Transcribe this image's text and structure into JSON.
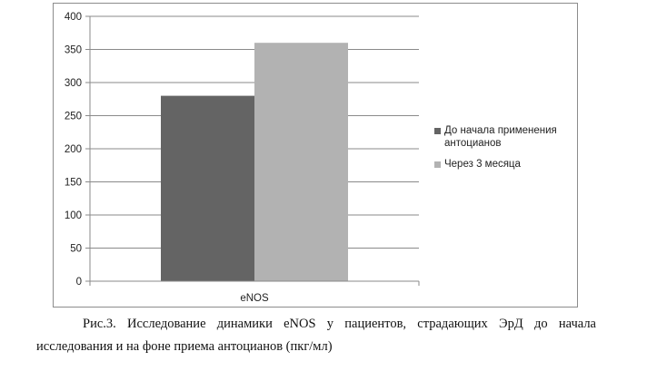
{
  "chart_data": {
    "type": "bar",
    "categories": [
      "eNOS"
    ],
    "series": [
      {
        "name": "До начала применения антоцианов",
        "values": [
          280
        ],
        "color": "#646464"
      },
      {
        "name": "Через 3 месяца",
        "values": [
          360
        ],
        "color": "#b2b2b2"
      }
    ],
    "ylim": [
      0,
      400
    ],
    "yticks": [
      0,
      50,
      100,
      150,
      200,
      250,
      300,
      350,
      400
    ],
    "grid": true,
    "legend_position": "right"
  },
  "legend": {
    "items": [
      {
        "label": "До начала применения антоцианов",
        "color": "#646464"
      },
      {
        "label": "Через 3 месяца",
        "color": "#b2b2b2"
      }
    ]
  },
  "caption": "Рис.3. Исследование динамики eNOS у пациентов, страдающих ЭрД до начала исследования и на фоне приема антоцианов (пкг/мл)"
}
